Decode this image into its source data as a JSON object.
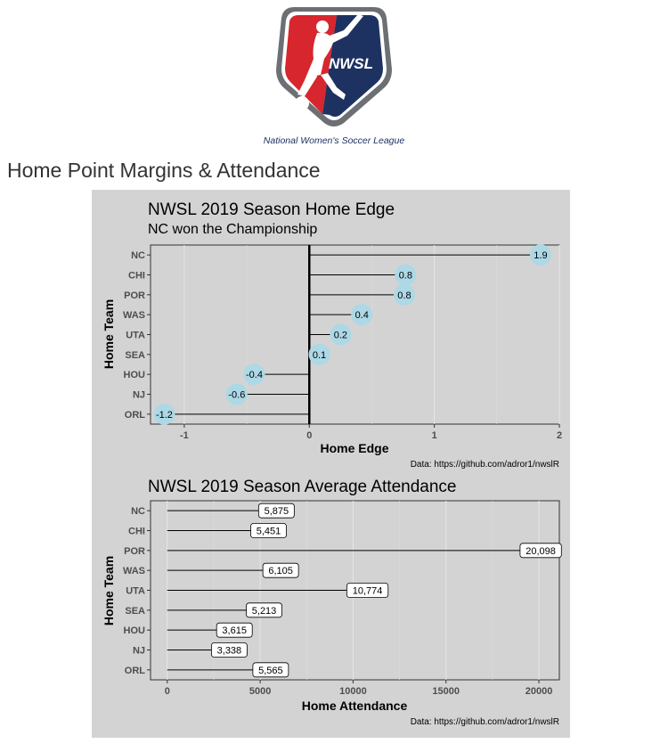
{
  "logo": {
    "wordmark": "NWSL",
    "tagline": "National Women's Soccer League",
    "colors": {
      "red": "#d7262d",
      "navy": "#1e3262",
      "grey": "#6c6f73"
    }
  },
  "page": {
    "title": "Home Point Margins & Attendance"
  },
  "chart_data": [
    {
      "type": "lollipop",
      "title": "NWSL 2019 Season Home Edge",
      "subtitle": "NC won the Championship",
      "xlabel": "Home Edge",
      "ylabel": "Home Team",
      "caption": "Data: https://github.com/adror1/nwslR",
      "categories": [
        "NC",
        "CHI",
        "POR",
        "WAS",
        "UTA",
        "SEA",
        "HOU",
        "NJ",
        "ORL"
      ],
      "values": [
        1.85,
        0.77,
        0.76,
        0.42,
        0.25,
        0.08,
        -0.44,
        -0.58,
        -1.16
      ],
      "data_labels": [
        "1.9",
        "0.8",
        "0.8",
        "0.4",
        "0.2",
        "0.1",
        "-0.4",
        "-0.6",
        "-1.2"
      ],
      "xlim": [
        -1.27,
        2.0
      ],
      "xticks": [
        -1,
        0,
        1,
        2
      ],
      "xtick_labels": [
        "-1",
        "0",
        "1",
        "2"
      ],
      "grid": true,
      "colors": {
        "point": "#add8e6",
        "panel": "#d3d3d3",
        "zero_line": "#000000"
      }
    },
    {
      "type": "lollipop",
      "title": "NWSL 2019 Season Average Attendance",
      "xlabel": "Home Attendance",
      "ylabel": "Home Team",
      "caption": "Data: https://github.com/adror1/nwslR",
      "categories": [
        "NC",
        "CHI",
        "POR",
        "WAS",
        "UTA",
        "SEA",
        "HOU",
        "NJ",
        "ORL"
      ],
      "values": [
        5875,
        5451,
        20098,
        6105,
        10774,
        5213,
        3615,
        3338,
        5565
      ],
      "data_labels": [
        "5,875",
        "5,451",
        "20,098",
        "6,105",
        "10,774",
        "5,213",
        "3,615",
        "3,338",
        "5,565"
      ],
      "xlim": [
        -900,
        21100
      ],
      "xticks": [
        0,
        5000,
        10000,
        15000,
        20000
      ],
      "xtick_labels": [
        "0",
        "5000",
        "10000",
        "15000",
        "20000"
      ],
      "grid": true,
      "colors": {
        "label_fill": "#ffffff",
        "panel": "#d3d3d3"
      }
    }
  ]
}
